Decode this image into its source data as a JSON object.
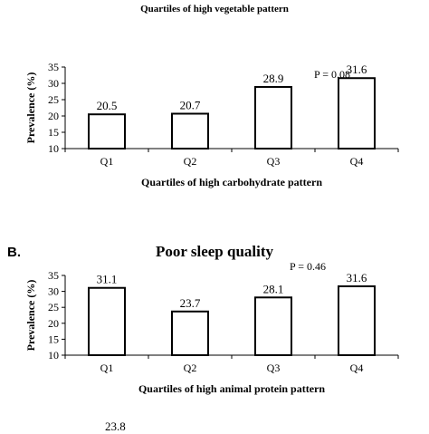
{
  "header": {
    "caption": "Quartiles of high vegetable pattern"
  },
  "panels": [
    {
      "letter": "",
      "title": "",
      "p_value": "P = 0.08",
      "ylabel": "Prevalence (%)",
      "xlabel": "Quartiles of high carbohydrate pattern"
    },
    {
      "letter": "B.",
      "title": "Poor sleep quality",
      "p_value": "P = 0.46",
      "ylabel": "Prevalence (%)",
      "xlabel": "Quartiles of high animal protein pattern"
    }
  ],
  "footer": {
    "partial_value": "23.8"
  },
  "chart_data": [
    {
      "type": "bar",
      "categories": [
        "Q1",
        "Q2",
        "Q3",
        "Q4"
      ],
      "values": [
        20.5,
        20.7,
        28.9,
        31.6
      ],
      "value_labels": [
        "20.5",
        "20.7",
        "28.9",
        "31.6"
      ],
      "xlabel": "Quartiles of high carbohydrate pattern",
      "ylabel": "Prevalence (%)",
      "ylim": [
        10,
        35
      ],
      "yticks": [
        10,
        15,
        20,
        25,
        30,
        35
      ],
      "annotation": "P = 0.08",
      "grid": false
    },
    {
      "type": "bar",
      "title": "Poor sleep quality",
      "categories": [
        "Q1",
        "Q2",
        "Q3",
        "Q4"
      ],
      "values": [
        31.1,
        23.7,
        28.1,
        31.6
      ],
      "value_labels": [
        "31.1",
        "23.7",
        "28.1",
        "31.6"
      ],
      "xlabel": "Quartiles of high animal protein pattern",
      "ylabel": "Prevalence (%)",
      "ylim": [
        10,
        35
      ],
      "yticks": [
        10,
        15,
        20,
        25,
        30,
        35
      ],
      "annotation": "P = 0.46",
      "grid": false
    }
  ]
}
